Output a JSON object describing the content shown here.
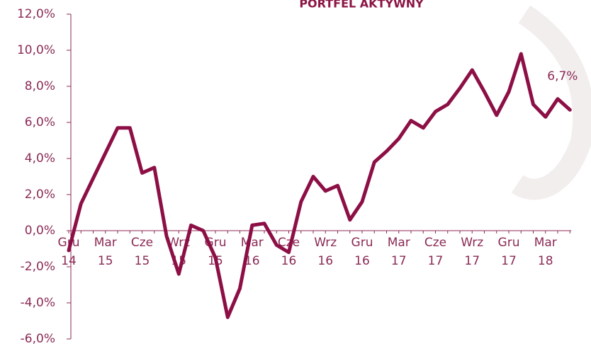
{
  "chart_data": {
    "type": "line",
    "title": "PORTFEL AKTYWNY",
    "categories": [
      "Gru 14",
      null,
      null,
      "Mar 15",
      null,
      null,
      "Cze 15",
      null,
      null,
      "Wrz 15",
      null,
      null,
      "Gru 15",
      null,
      null,
      "Mar 16",
      null,
      null,
      "Cze 16",
      null,
      null,
      "Wrz 16",
      null,
      null,
      "Gru 16",
      null,
      null,
      "Mar 17",
      null,
      null,
      "Cze 17",
      null,
      null,
      "Wrz 17",
      null,
      null,
      "Gru 17",
      null,
      null,
      "Mar 18",
      null,
      null
    ],
    "series": [
      {
        "name": "Portfel aktywny",
        "color": "#8c0f45",
        "values": [
          -1.1,
          1.5,
          2.9,
          4.3,
          5.7,
          5.7,
          3.2,
          3.5,
          -0.3,
          -2.4,
          0.3,
          0.0,
          -1.5,
          -4.8,
          -3.2,
          0.3,
          0.4,
          -0.8,
          -1.2,
          1.6,
          3.0,
          2.2,
          2.5,
          0.6,
          1.6,
          3.8,
          4.4,
          5.1,
          6.1,
          5.7,
          6.6,
          7.0,
          7.9,
          8.9,
          7.7,
          6.4,
          7.7,
          9.8,
          7.0,
          6.3,
          7.3,
          6.7
        ],
        "value_labels": [
          null,
          null,
          null,
          null,
          null,
          null,
          null,
          null,
          null,
          null,
          null,
          null,
          null,
          null,
          null,
          null,
          null,
          null,
          null,
          null,
          null,
          null,
          null,
          null,
          null,
          null,
          null,
          null,
          null,
          null,
          null,
          null,
          null,
          null,
          null,
          null,
          null,
          null,
          null,
          null,
          null,
          "6,7%"
        ]
      }
    ],
    "ylim": [
      -6,
      12
    ],
    "yticks": [
      {
        "value": -6,
        "label": "-6,0%"
      },
      {
        "value": -4,
        "label": "-4,0%"
      },
      {
        "value": -2,
        "label": "-2,0%"
      },
      {
        "value": 0,
        "label": "0,0%"
      },
      {
        "value": 2,
        "label": "2,0%"
      },
      {
        "value": 4,
        "label": "4,0%"
      },
      {
        "value": 6,
        "label": "6,0%"
      },
      {
        "value": 8,
        "label": "8,0%"
      },
      {
        "value": 10,
        "label": "10,0%"
      },
      {
        "value": 12,
        "label": "12,0%"
      }
    ]
  }
}
